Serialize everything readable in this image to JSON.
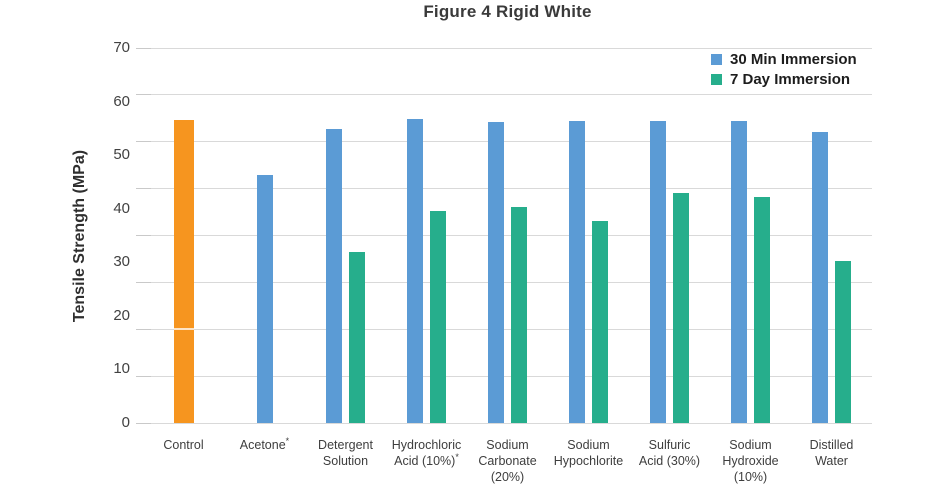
{
  "chart_data": {
    "type": "bar",
    "title": "Figure 4 Rigid White",
    "ylabel": "Tensile Strength (MPa)",
    "ylim": [
      0,
      70
    ],
    "yticks": [
      70,
      60,
      50,
      40,
      30,
      20,
      10,
      0
    ],
    "gridlines": 9,
    "grid_color": "#D9D9D9",
    "background_color": "#FFFFFF",
    "legend_position": "top-right",
    "legend": [
      {
        "key": "30min",
        "label": "30 Min Immersion",
        "color": "#5B9BD5"
      },
      {
        "key": "7day",
        "label": "7 Day Immersion",
        "color": "#26AE8C"
      }
    ],
    "control_color": "#F6951F",
    "groups": [
      {
        "label_lines": [
          "Control"
        ],
        "bars": [
          {
            "series": "control",
            "value": 56.6
          }
        ]
      },
      {
        "label_lines": [
          "Acetone*"
        ],
        "bars": [
          {
            "series": "30min",
            "value": 46.3
          }
        ]
      },
      {
        "label_lines": [
          "Detergent",
          "Solution"
        ],
        "bars": [
          {
            "series": "30min",
            "value": 54.9
          },
          {
            "series": "7day",
            "value": 32.0
          }
        ]
      },
      {
        "label_lines": [
          "Hydrochloric",
          "Acid (10%)*"
        ],
        "bars": [
          {
            "series": "30min",
            "value": 56.7
          },
          {
            "series": "7day",
            "value": 39.6
          }
        ]
      },
      {
        "label_lines": [
          "Sodium",
          "Carbonate",
          "(20%)"
        ],
        "bars": [
          {
            "series": "30min",
            "value": 56.1
          },
          {
            "series": "7day",
            "value": 40.3
          }
        ]
      },
      {
        "label_lines": [
          "Sodium",
          "Hypochlorite"
        ],
        "bars": [
          {
            "series": "30min",
            "value": 56.3
          },
          {
            "series": "7day",
            "value": 37.8
          }
        ]
      },
      {
        "label_lines": [
          "Sulfuric",
          "Acid (30%)"
        ],
        "bars": [
          {
            "series": "30min",
            "value": 56.3
          },
          {
            "series": "7day",
            "value": 42.9
          }
        ]
      },
      {
        "label_lines": [
          "Sodium",
          "Hydroxide",
          "(10%)"
        ],
        "bars": [
          {
            "series": "30min",
            "value": 56.4
          },
          {
            "series": "7day",
            "value": 42.2
          }
        ]
      },
      {
        "label_lines": [
          "Distilled",
          "Water"
        ],
        "bars": [
          {
            "series": "30min",
            "value": 54.3
          },
          {
            "series": "7day",
            "value": 30.3
          }
        ]
      }
    ]
  }
}
